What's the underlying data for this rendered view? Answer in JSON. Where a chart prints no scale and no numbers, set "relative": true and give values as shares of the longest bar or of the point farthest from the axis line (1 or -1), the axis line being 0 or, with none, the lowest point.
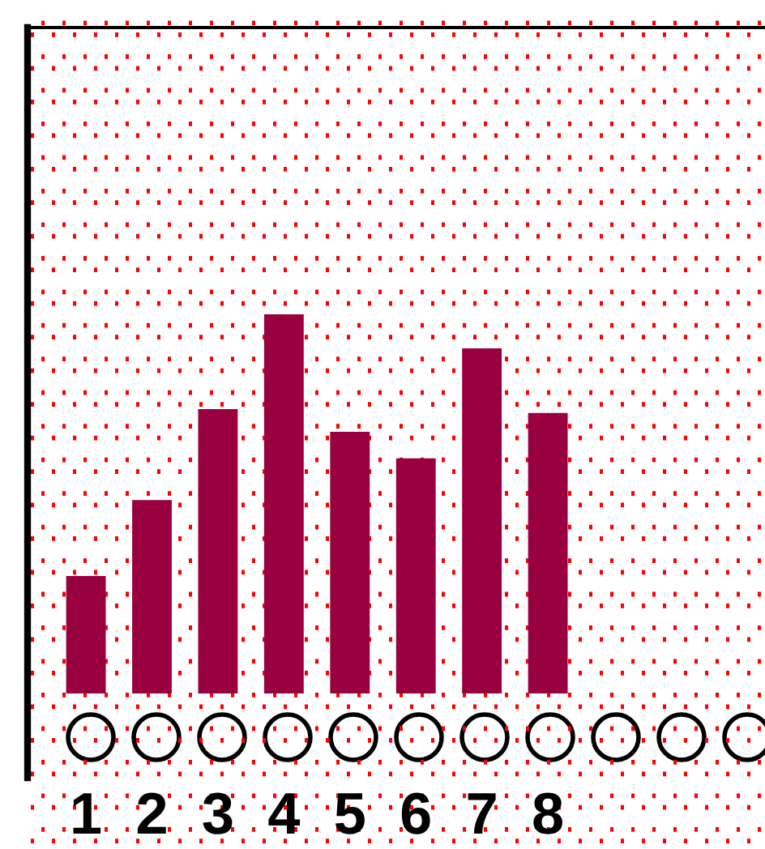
{
  "chart_data": {
    "type": "bar",
    "relative": true,
    "categories": [
      "1",
      "2",
      "3",
      "4",
      "5",
      "6",
      "7",
      "8"
    ],
    "values": [
      0.31,
      0.51,
      0.75,
      1,
      0.69,
      0.62,
      0.91,
      0.74
    ],
    "color": "#990040",
    "grid": true,
    "legend": false,
    "tick_labels": "x"
  }
}
